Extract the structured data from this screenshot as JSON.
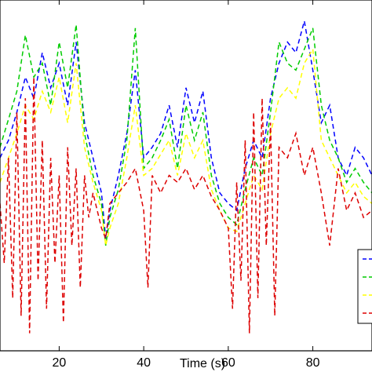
{
  "chart_data": {
    "type": "line",
    "title": "",
    "xlabel": "Time (s)",
    "ylabel": "",
    "xlim": [
      6,
      94
    ],
    "ylim": [
      0,
      1
    ],
    "x_ticks": [
      20,
      40,
      60,
      80
    ],
    "grid": false,
    "legend_position": "bottom-right",
    "series": [
      {
        "color": "#0000ff",
        "x": [
          6,
          8,
          10,
          12,
          14,
          16,
          18,
          20,
          22,
          24,
          26,
          28,
          30,
          31,
          32,
          34,
          36,
          38,
          40,
          42,
          44,
          46,
          48,
          50,
          52,
          54,
          56,
          58,
          60,
          62,
          64,
          66,
          68,
          70,
          72,
          74,
          76,
          78,
          80,
          82,
          84,
          86,
          88,
          90,
          92,
          94
        ],
        "y": [
          0.55,
          0.6,
          0.68,
          0.78,
          0.72,
          0.85,
          0.75,
          0.82,
          0.7,
          0.88,
          0.65,
          0.55,
          0.45,
          0.32,
          0.4,
          0.5,
          0.62,
          0.8,
          0.55,
          0.58,
          0.62,
          0.7,
          0.58,
          0.75,
          0.65,
          0.74,
          0.55,
          0.45,
          0.42,
          0.4,
          0.52,
          0.6,
          0.55,
          0.72,
          0.82,
          0.88,
          0.85,
          0.94,
          0.8,
          0.65,
          0.7,
          0.55,
          0.5,
          0.58,
          0.55,
          0.5
        ]
      },
      {
        "color": "#00cc00",
        "x": [
          6,
          8,
          10,
          12,
          14,
          16,
          18,
          20,
          22,
          24,
          26,
          28,
          30,
          31,
          32,
          34,
          36,
          38,
          40,
          42,
          44,
          46,
          48,
          50,
          52,
          54,
          56,
          58,
          60,
          62,
          64,
          66,
          68,
          70,
          72,
          74,
          76,
          78,
          80,
          82,
          84,
          86,
          88,
          90,
          92,
          94
        ],
        "y": [
          0.58,
          0.66,
          0.74,
          0.9,
          0.78,
          0.82,
          0.7,
          0.88,
          0.75,
          0.93,
          0.62,
          0.5,
          0.42,
          0.3,
          0.38,
          0.46,
          0.6,
          0.92,
          0.52,
          0.55,
          0.6,
          0.66,
          0.52,
          0.7,
          0.6,
          0.68,
          0.5,
          0.42,
          0.38,
          0.36,
          0.46,
          0.55,
          0.5,
          0.68,
          0.88,
          0.82,
          0.8,
          0.86,
          0.92,
          0.7,
          0.6,
          0.55,
          0.48,
          0.52,
          0.48,
          0.45
        ]
      },
      {
        "color": "#ffff00",
        "x": [
          6,
          8,
          10,
          12,
          14,
          16,
          18,
          20,
          22,
          24,
          26,
          28,
          30,
          31,
          32,
          34,
          36,
          38,
          40,
          42,
          44,
          46,
          48,
          50,
          52,
          54,
          56,
          58,
          60,
          62,
          64,
          66,
          68,
          70,
          72,
          74,
          76,
          78,
          80,
          82,
          84,
          86,
          88,
          90,
          92,
          94
        ],
        "y": [
          0.48,
          0.55,
          0.62,
          0.7,
          0.66,
          0.74,
          0.68,
          0.78,
          0.65,
          0.82,
          0.58,
          0.48,
          0.4,
          0.3,
          0.35,
          0.42,
          0.55,
          0.7,
          0.5,
          0.52,
          0.56,
          0.6,
          0.5,
          0.62,
          0.55,
          0.6,
          0.46,
          0.4,
          0.35,
          0.34,
          0.42,
          0.5,
          0.46,
          0.62,
          0.72,
          0.75,
          0.72,
          0.82,
          0.86,
          0.6,
          0.55,
          0.5,
          0.45,
          0.48,
          0.44,
          0.42
        ]
      },
      {
        "color": "#dd0000",
        "x": [
          6,
          7,
          8,
          9,
          10,
          11,
          12,
          13,
          14,
          15,
          16,
          17,
          18,
          19,
          20,
          21,
          22,
          23,
          24,
          25,
          26,
          27,
          28,
          30,
          31,
          32,
          34,
          36,
          38,
          40,
          41,
          42,
          44,
          46,
          48,
          50,
          52,
          54,
          56,
          58,
          60,
          61,
          62,
          63,
          64,
          65,
          66,
          67,
          68,
          69,
          70,
          71,
          72,
          74,
          76,
          78,
          80,
          82,
          84,
          86,
          88,
          90,
          92,
          94
        ],
        "y": [
          0.42,
          0.25,
          0.55,
          0.15,
          0.68,
          0.1,
          0.72,
          0.05,
          0.78,
          0.2,
          0.6,
          0.12,
          0.55,
          0.25,
          0.5,
          0.08,
          0.58,
          0.3,
          0.52,
          0.18,
          0.5,
          0.38,
          0.45,
          0.35,
          0.32,
          0.42,
          0.45,
          0.48,
          0.52,
          0.4,
          0.18,
          0.5,
          0.45,
          0.5,
          0.48,
          0.52,
          0.46,
          0.5,
          0.44,
          0.4,
          0.35,
          0.12,
          0.48,
          0.2,
          0.6,
          0.05,
          0.68,
          0.15,
          0.72,
          0.3,
          0.65,
          0.1,
          0.58,
          0.55,
          0.62,
          0.5,
          0.58,
          0.45,
          0.3,
          0.52,
          0.4,
          0.45,
          0.38,
          0.4
        ]
      }
    ],
    "legend_entries": [
      "",
      "",
      "",
      ""
    ]
  }
}
